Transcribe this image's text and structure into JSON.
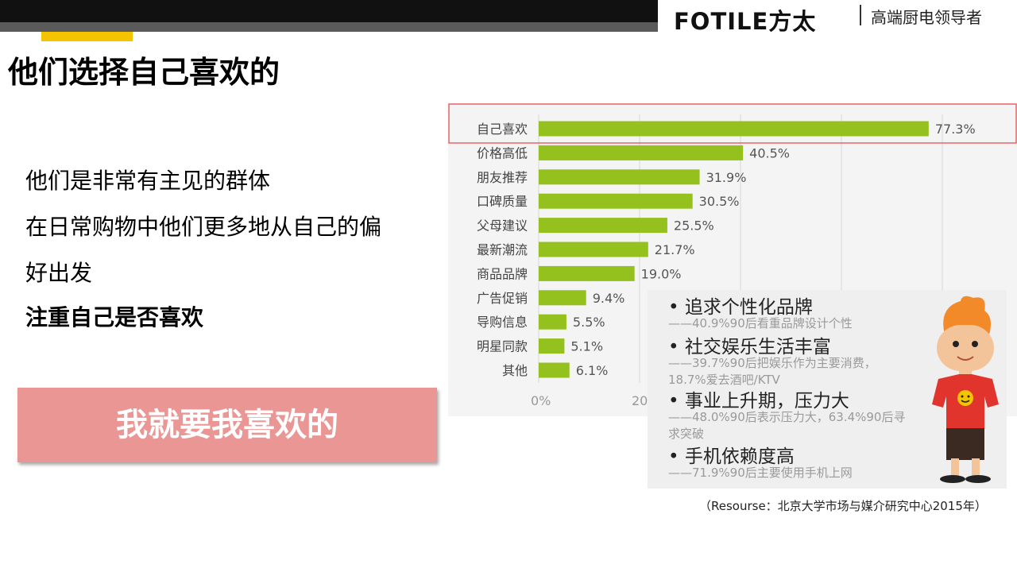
{
  "header": {
    "logo": "FOTILE方太",
    "tagline": "高端厨电领导者"
  },
  "title": "他们选择自己喜欢的",
  "body": {
    "lines": [
      "他们是非常有主见的群体",
      "在日常购物中他们更多地从自己的偏",
      "好出发"
    ],
    "emphasis": "注重自己是否喜欢"
  },
  "callout": "我就要我喜欢的",
  "overlay": {
    "items": [
      {
        "head": "• 追求个性化品牌",
        "sub": "——40.9%90后看重品牌设计个性"
      },
      {
        "head": "• 社交娱乐生活丰富",
        "sub": "——39.7%90后把娱乐作为主要消费，18.7%爱去酒吧/KTV"
      },
      {
        "head": "• 事业上升期，压力大",
        "sub": "——48.0%90后表示压力大，63.4%90后寻求突破"
      },
      {
        "head": "• 手机依赖度高",
        "sub": "——71.9%90后主要使用手机上网"
      }
    ]
  },
  "source": "（Resourse：北京大学市场与媒介研究中心2015年）",
  "colors": {
    "bar": "#95c11f",
    "highlight": "#e4676a",
    "callout_bg": "#e99695",
    "accent": "#f5c400"
  },
  "chart_data": {
    "type": "bar",
    "orientation": "horizontal",
    "categories": [
      "自己喜欢",
      "价格高低",
      "朋友推荐",
      "口碑质量",
      "父母建议",
      "最新潮流",
      "商品品牌",
      "广告促销",
      "导购信息",
      "明星同款",
      "其他"
    ],
    "values": [
      77.3,
      40.5,
      31.9,
      30.5,
      25.5,
      21.7,
      19.0,
      9.4,
      5.5,
      5.1,
      6.1
    ],
    "value_labels": [
      "77.3%",
      "40.5%",
      "31.9%",
      "30.5%",
      "25.5%",
      "21.7%",
      "19.0%",
      "9.4%",
      "5.5%",
      "5.1%",
      "6.1%"
    ],
    "xlim": [
      0,
      100
    ],
    "x_ticks": [
      "0%",
      "20%"
    ],
    "grid": true,
    "highlighted_category": "自己喜欢"
  }
}
